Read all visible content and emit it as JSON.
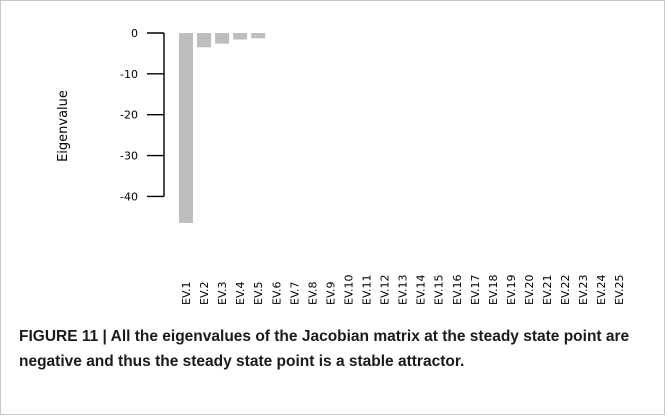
{
  "chart_data": {
    "type": "bar",
    "categories": [
      "EV.1",
      "EV.2",
      "EV.3",
      "EV.4",
      "EV.5",
      "EV.6",
      "EV.7",
      "EV.8",
      "EV.9",
      "EV.10",
      "EV.11",
      "EV.12",
      "EV.13",
      "EV.14",
      "EV.15",
      "EV.16",
      "EV.17",
      "EV.18",
      "EV.19",
      "EV.20",
      "EV.21",
      "EV.22",
      "EV.23",
      "EV.24",
      "EV.25"
    ],
    "values": [
      -46.5,
      -3.5,
      -2.6,
      -1.6,
      -1.3,
      0,
      0,
      0,
      0,
      0,
      0,
      0,
      0,
      0,
      0,
      0,
      0,
      0,
      0,
      0,
      0,
      0,
      0,
      0,
      0
    ],
    "ylabel": "Eigenvalue",
    "xlabel": "",
    "yticks": [
      0,
      -10,
      -20,
      -30,
      -40
    ],
    "ylim": [
      -46.5,
      0
    ],
    "bar_color": "#bebebe",
    "grid": false,
    "legend": "none"
  },
  "caption": "FIGURE 11 | All the eigenvalues of the Jacobian matrix at the steady state point are negative and thus the steady state point is a stable attractor."
}
